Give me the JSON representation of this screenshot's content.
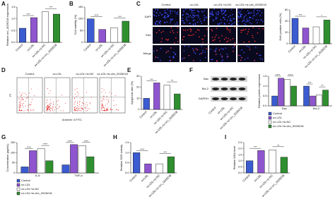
{
  "panels": [
    "A",
    "B",
    "C",
    "D",
    "E",
    "F",
    "G",
    "H",
    "I"
  ],
  "figure_c": {
    "columns": [
      "Control",
      "ox-LDL",
      "ox-LDL+si-NC",
      "ox-LDL+si-circ_0026218"
    ],
    "rows": [
      "DAPI",
      "EdU",
      "Merge"
    ]
  },
  "figure_d": {
    "columns": [
      "Control",
      "ox-LDL",
      "ox-LDL+si-NC",
      "ox-LDL+si-circ_0026218"
    ],
    "x_label": "Annexin V-FITC",
    "y_label": "PI"
  },
  "figure_f": {
    "bands": [
      "Bax",
      "Bcl-2",
      "GAPDH"
    ],
    "lanes": [
      "Control",
      "ox-LDL",
      "ox-LDL+si-NC",
      "ox-LDL+si-circ_0026218"
    ]
  },
  "chart_data": [
    {
      "type": "bar",
      "y_label": "Relative circ_0026218 expression",
      "categories": [
        "Control",
        "ox-LDL",
        "ox-LDL+si-NC",
        "ox-LDL+si-circ_0026218"
      ],
      "values": [
        0.6,
        1.05,
        1.3,
        1.2
      ],
      "colors": [
        "#3b5bd0",
        "#8f55cf",
        "#ffffff",
        "#2f8f2f"
      ],
      "ylim": [
        0,
        1.5
      ],
      "yticks": [
        {
          "value": 0,
          "label": "0.0"
        },
        0.5,
        {
          "value": 1,
          "label": "1.0"
        },
        1.5
      ],
      "annotations": [
        "***",
        "***"
      ]
    },
    {
      "type": "bar",
      "y_label": "Cell viability (%)",
      "categories": [
        "Control",
        "ox-LDL",
        "ox-LDL+si-NC",
        "ox-LDL+si-circ_0026218"
      ],
      "values": [
        100,
        55,
        62,
        90
      ],
      "colors": [
        "#3b5bd0",
        "#8f55cf",
        "#ffffff",
        "#2f8f2f"
      ],
      "ylim": [
        0,
        150
      ],
      "yticks": [
        0,
        50,
        100,
        150
      ],
      "annotations": [
        "****",
        "***"
      ]
    },
    {
      "type": "bar",
      "y_label": "EdU positive cells (%)",
      "categories": [
        "Control",
        "ox-LDL",
        "ox-LDL+si-NC",
        "ox-LDL+si-circ_0026218"
      ],
      "values": [
        45,
        28,
        30,
        42
      ],
      "colors": [
        "#3b5bd0",
        "#8f55cf",
        "#ffffff",
        "#2f8f2f"
      ],
      "ylim": [
        0,
        60
      ],
      "yticks": [
        0,
        20,
        40,
        60
      ],
      "annotations": [
        "***",
        "*"
      ]
    },
    {
      "type": "bar",
      "y_label": "Apoptosis rate (%)",
      "categories": [
        "Control",
        "ox-LDL",
        "ox-LDL+si-NC",
        "ox-LDL+si-circ_0026218"
      ],
      "values": [
        10,
        24,
        22,
        14
      ],
      "colors": [
        "#3b5bd0",
        "#8f55cf",
        "#ffffff",
        "#2f8f2f"
      ],
      "ylim": [
        0,
        30
      ],
      "yticks": [
        0,
        10,
        20,
        30
      ],
      "annotations": [
        "***",
        "**"
      ]
    },
    {
      "type": "grouped_bar",
      "y_label": "Relative protein expression",
      "categories": [
        "Bax",
        "Bcl-2"
      ],
      "series": [
        {
          "name": "Control",
          "color": "#3b5bd0",
          "values": [
            0.5,
            1.0
          ]
        },
        {
          "name": "ox-LDL",
          "color": "#8f55cf",
          "values": [
            1.4,
            0.5
          ]
        },
        {
          "name": "ox-LDL+si-NC",
          "color": "#ffffff",
          "values": [
            1.35,
            0.55
          ]
        },
        {
          "name": "ox-LDL+si-circ_0026218",
          "color": "#2f8f2f",
          "values": [
            1.0,
            0.8
          ]
        }
      ],
      "ylim": [
        0,
        1.5
      ],
      "yticks": [
        {
          "value": 0,
          "label": "0.0"
        },
        0.5,
        {
          "value": 1,
          "label": "1.0"
        },
        1.5
      ],
      "annotations": [
        "****",
        "****",
        "***",
        "**"
      ]
    },
    {
      "type": "grouped_bar",
      "y_label": "Concentration (pg/mL)",
      "categories": [
        "IL-6",
        "TNF-α"
      ],
      "series": [
        {
          "name": "Control",
          "color": "#3b5bd0",
          "values": [
            30,
            40
          ]
        },
        {
          "name": "ox-LDL",
          "color": "#8f55cf",
          "values": [
            110,
            140
          ]
        },
        {
          "name": "ox-LDL+si-NC",
          "color": "#ffffff",
          "values": [
            120,
            135
          ]
        },
        {
          "name": "ox-LDL+si-circ_0026218",
          "color": "#2f8f2f",
          "values": [
            60,
            80
          ]
        }
      ],
      "ylim": [
        0,
        150
      ],
      "yticks": [
        0,
        50,
        100,
        150
      ],
      "annotations": [
        "****",
        "****",
        "****",
        "****"
      ]
    },
    {
      "type": "bar",
      "y_label": "Relative SOD activity",
      "categories": [
        "Control",
        "ox-LDL",
        "ox-LDL+si-NC",
        "ox-LDL+si-circ_0026218"
      ],
      "values": [
        1.0,
        0.45,
        0.45,
        0.8
      ],
      "colors": [
        "#3b5bd0",
        "#8f55cf",
        "#ffffff",
        "#2f8f2f"
      ],
      "ylim": [
        0,
        1.5
      ],
      "yticks": [
        {
          "value": 0,
          "label": "0.0"
        },
        0.5,
        {
          "value": 1,
          "label": "1.0"
        },
        1.5
      ],
      "annotations": [
        "****",
        "***"
      ]
    },
    {
      "type": "bar",
      "y_label": "Relative MDA level",
      "categories": [
        "Control",
        "ox-LDL",
        "ox-LDL+si-NC",
        "ox-LDL+si-circ_0026218"
      ],
      "values": [
        1.0,
        1.85,
        1.9,
        1.3
      ],
      "colors": [
        "#3b5bd0",
        "#8f55cf",
        "#ffffff",
        "#2f8f2f"
      ],
      "ylim": [
        0,
        2.5
      ],
      "yticks": [
        {
          "value": 0,
          "label": "0.0"
        },
        0.5,
        {
          "value": 1,
          "label": "1.0"
        },
        1.5,
        {
          "value": 2,
          "label": "2.0"
        },
        2.5
      ],
      "annotations": [
        "***",
        "**"
      ]
    }
  ]
}
